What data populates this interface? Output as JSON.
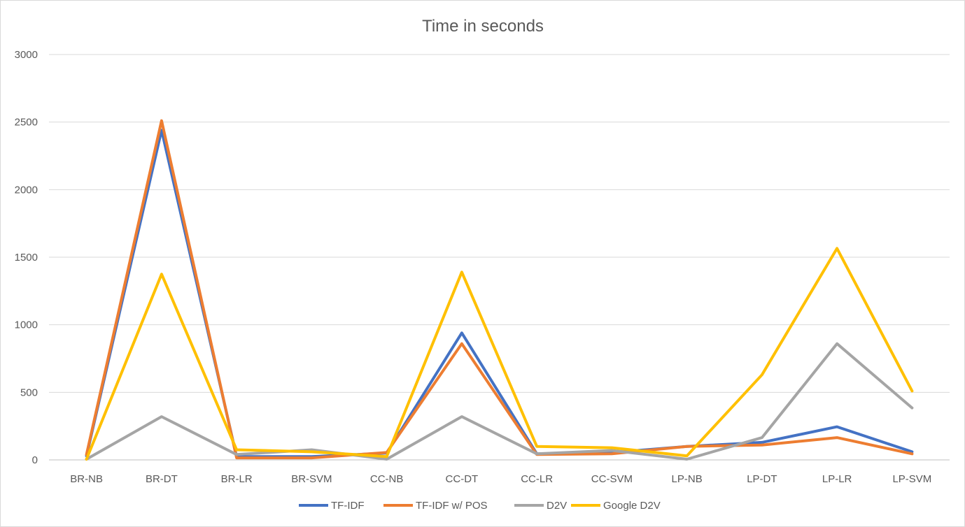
{
  "chart_data": {
    "type": "line",
    "title": "Time in seconds",
    "xlabel": "",
    "ylabel": "",
    "categories": [
      "BR-NB",
      "BR-DT",
      "BR-LR",
      "BR-SVM",
      "CC-NB",
      "CC-DT",
      "CC-LR",
      "CC-SVM",
      "LP-NB",
      "LP-DT",
      "LP-LR",
      "LP-SVM"
    ],
    "ylim": [
      0,
      3000
    ],
    "yticks": [
      0,
      500,
      1000,
      1500,
      2000,
      2500,
      3000
    ],
    "grid": true,
    "legend": "bottom",
    "series": [
      {
        "name": "TF-IDF",
        "color": "#4472c4",
        "values": [
          30,
          2440,
          25,
          25,
          50,
          940,
          45,
          55,
          100,
          130,
          245,
          60
        ]
      },
      {
        "name": "TF-IDF w/ POS",
        "color": "#ed7d31",
        "values": [
          40,
          2510,
          15,
          15,
          55,
          860,
          40,
          45,
          100,
          110,
          165,
          45
        ]
      },
      {
        "name": "D2V",
        "color": "#a5a5a5",
        "values": [
          5,
          320,
          40,
          75,
          5,
          320,
          45,
          70,
          5,
          165,
          860,
          385
        ]
      },
      {
        "name": "Google D2V",
        "color": "#ffc000",
        "values": [
          5,
          1375,
          75,
          60,
          25,
          1390,
          100,
          90,
          30,
          630,
          1565,
          510
        ]
      }
    ]
  }
}
